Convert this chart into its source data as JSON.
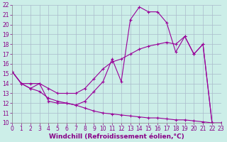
{
  "xlabel": "Windchill (Refroidissement éolien,°C)",
  "background_color": "#cceee8",
  "grid_color": "#aabbcc",
  "line_color": "#990099",
  "xlim": [
    0,
    23
  ],
  "ylim": [
    10,
    22
  ],
  "xticks": [
    0,
    1,
    2,
    3,
    4,
    5,
    6,
    7,
    8,
    9,
    10,
    11,
    12,
    13,
    14,
    15,
    16,
    17,
    18,
    19,
    20,
    21,
    22,
    23
  ],
  "yticks": [
    10,
    11,
    12,
    13,
    14,
    15,
    16,
    17,
    18,
    19,
    20,
    21,
    22
  ],
  "line1_x": [
    0,
    1,
    2,
    3,
    4,
    5,
    6,
    7,
    8,
    9,
    10,
    11,
    12,
    13,
    14,
    15,
    16,
    17,
    18,
    19,
    20,
    21,
    22
  ],
  "line1_y": [
    15.2,
    14.0,
    13.5,
    14.0,
    12.2,
    12.0,
    12.0,
    11.8,
    12.2,
    13.2,
    14.2,
    16.5,
    14.2,
    20.5,
    21.8,
    21.3,
    21.3,
    20.2,
    17.2,
    18.8,
    17.0,
    18.0,
    10.0
  ],
  "line2_x": [
    0,
    1,
    2,
    3,
    4,
    5,
    6,
    7,
    8,
    9,
    10,
    11,
    12,
    13,
    14,
    15,
    16,
    17,
    18,
    19,
    20,
    21,
    22
  ],
  "line2_y": [
    15.2,
    14.0,
    14.0,
    14.0,
    13.5,
    13.0,
    13.0,
    13.0,
    13.5,
    14.5,
    15.5,
    16.2,
    16.5,
    17.0,
    17.5,
    17.8,
    18.0,
    18.2,
    18.0,
    18.8,
    17.0,
    18.0,
    10.0
  ],
  "line3_x": [
    0,
    1,
    2,
    3,
    4,
    5,
    6,
    7,
    8,
    9,
    10,
    11,
    12,
    13,
    14,
    15,
    16,
    17,
    18,
    19,
    20,
    21,
    22,
    23
  ],
  "line3_y": [
    15.2,
    14.0,
    13.5,
    13.2,
    12.5,
    12.2,
    12.0,
    11.8,
    11.5,
    11.2,
    11.0,
    10.9,
    10.8,
    10.7,
    10.6,
    10.5,
    10.5,
    10.4,
    10.3,
    10.3,
    10.2,
    10.1,
    10.0,
    10.0
  ],
  "fontsize_ticks": 5.5,
  "fontsize_xlabel": 6.5
}
